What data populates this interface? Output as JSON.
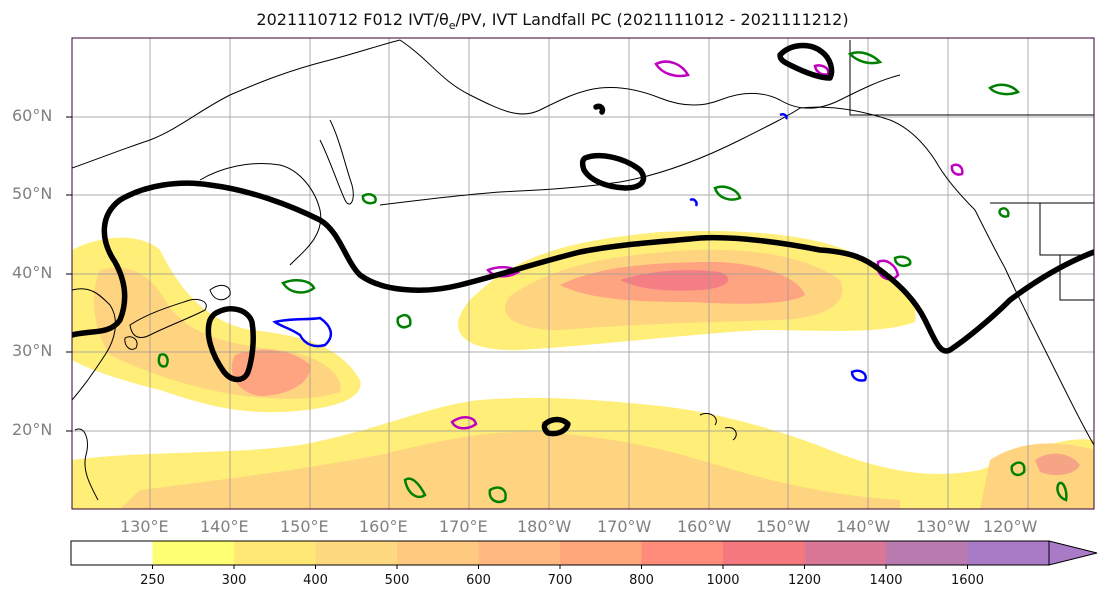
{
  "title": {
    "prefix": "2021110712 F012 IVT/",
    "theta_symbol": "θ",
    "theta_sub": "e",
    "suffix": "/PV, IVT Landfall PC (2021111012 - 2021111212)"
  },
  "lat_labels": [
    "60°N",
    "50°N",
    "40°N",
    "30°N",
    "20°N"
  ],
  "lon_labels": [
    "130°E",
    "140°E",
    "150°E",
    "160°E",
    "170°E",
    "180°W",
    "170°W",
    "160°W",
    "150°W",
    "140°W",
    "130°W",
    "120°W"
  ],
  "colorbar": {
    "levels": [
      "250",
      "300",
      "400",
      "500",
      "600",
      "700",
      "800",
      "1000",
      "1200",
      "1400",
      "1600"
    ],
    "colors": [
      "#ffffff",
      "#ffff73",
      "#ffe873",
      "#ffd980",
      "#ffca80",
      "#ffb880",
      "#ffa67a",
      "#ff8c7a",
      "#f5787f",
      "#d97896",
      "#b97ab0",
      "#a97ac5"
    ]
  },
  "colors": {
    "pv_contour": "#000000",
    "theta_e_contour": "#008000",
    "blue_contour": "#0000ff",
    "magenta_contour": "#c000c0",
    "frame": "#330033"
  }
}
